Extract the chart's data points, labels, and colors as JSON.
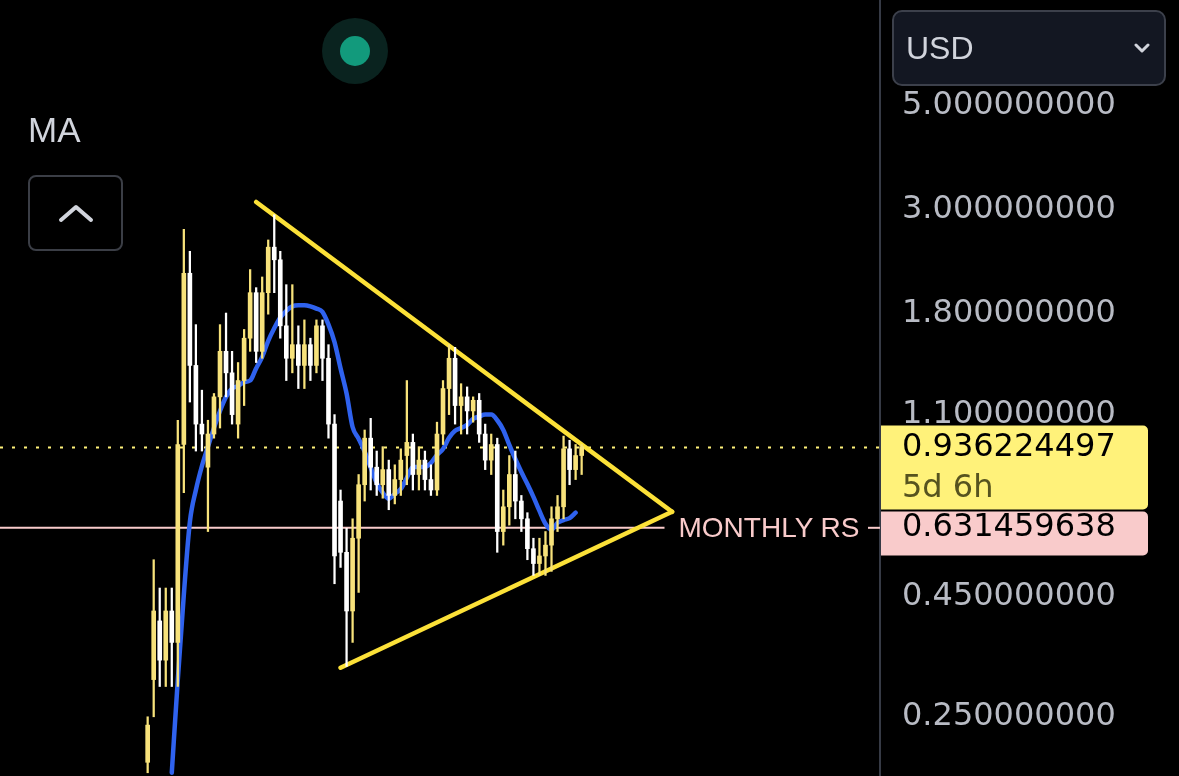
{
  "chart_data": {
    "type": "candlestick",
    "categories": [
      null,
      null,
      null,
      null,
      null,
      null,
      null,
      null,
      null,
      null,
      null,
      null,
      null,
      null,
      null,
      null,
      null,
      null,
      null,
      null,
      null,
      null,
      null,
      null,
      null,
      null,
      null,
      null,
      null,
      null,
      null,
      null,
      null,
      null,
      null,
      null,
      null,
      null,
      null,
      null,
      null,
      null,
      null,
      null,
      null,
      null,
      null,
      null,
      null,
      null,
      null,
      null,
      null,
      null,
      null,
      null,
      null,
      null,
      null,
      null,
      null,
      null,
      null,
      null,
      null,
      null,
      null,
      null,
      null,
      null,
      null,
      null,
      null,
      null,
      null,
      null,
      null,
      null,
      null,
      null,
      null,
      null,
      null,
      null,
      null,
      null,
      null,
      null,
      null,
      null,
      null,
      null,
      null,
      null,
      null,
      null,
      null,
      null,
      null,
      null,
      null,
      null,
      null,
      null,
      null,
      null,
      null,
      null,
      null,
      null,
      null,
      null,
      null,
      null,
      null,
      null,
      null,
      null,
      null,
      null,
      null,
      null,
      null,
      null,
      null,
      null,
      null,
      null,
      null,
      null,
      null,
      null,
      null,
      null,
      null,
      null,
      null,
      null,
      null,
      null,
      null,
      null,
      null,
      null,
      null,
      null
    ],
    "ohlc": [
      null,
      null,
      null,
      null,
      null,
      null,
      null,
      null,
      null,
      null,
      null,
      null,
      null,
      null,
      null,
      null,
      null,
      null,
      null,
      null,
      null,
      null,
      null,
      null,
      [
        0.2,
        0.25,
        0.19,
        0.24
      ],
      [
        0.3,
        0.54,
        0.25,
        0.42
      ],
      [
        0.4,
        0.47,
        0.29,
        0.33
      ],
      [
        0.33,
        0.47,
        0.29,
        0.42
      ],
      [
        0.42,
        0.47,
        0.29,
        0.36
      ],
      [
        0.36,
        1.07,
        0.29,
        0.95
      ],
      [
        0.95,
        2.73,
        0.75,
        2.2
      ],
      [
        2.2,
        2.45,
        1.17,
        1.4
      ],
      [
        1.4,
        1.71,
        0.92,
        1.05
      ],
      [
        1.05,
        1.24,
        0.92,
        1
      ],
      [
        0.85,
        1.07,
        0.62,
        1
      ],
      [
        1,
        1.22,
        0.98,
        1.2
      ],
      [
        1.2,
        1.71,
        1.03,
        1.5
      ],
      [
        1.5,
        1.81,
        1.2,
        1.35
      ],
      [
        1.35,
        1.5,
        1.05,
        1.1
      ],
      [
        1.05,
        1.42,
        0.98,
        1.3
      ],
      [
        1.3,
        1.67,
        1.15,
        1.6
      ],
      [
        1.6,
        2.24,
        1.5,
        2
      ],
      [
        2,
        2.05,
        1.42,
        1.5
      ],
      [
        1.5,
        2.16,
        1.45,
        2
      ],
      [
        2,
        2.59,
        1.8,
        2.5
      ],
      [
        2.5,
        2.93,
        2,
        2.35
      ],
      [
        2.35,
        2.45,
        1.6,
        1.7
      ],
      [
        1.7,
        2.08,
        1.3,
        1.45
      ],
      [
        1.45,
        2.08,
        1.35,
        1.55
      ],
      [
        1.55,
        1.7,
        1.25,
        1.4
      ],
      [
        1.4,
        1.75,
        1.25,
        1.55
      ],
      [
        1.55,
        1.6,
        1.3,
        1.4
      ],
      [
        1.4,
        1.75,
        1.35,
        1.7
      ],
      [
        1.7,
        1.75,
        1.3,
        1.45
      ],
      [
        1.45,
        1.55,
        0.98,
        1.05
      ],
      [
        1.05,
        1.1,
        0.48,
        0.55
      ],
      [
        0.72,
        0.76,
        0.52,
        0.56
      ],
      [
        0.56,
        0.63,
        0.32,
        0.42
      ],
      [
        0.42,
        0.66,
        0.36,
        0.6
      ],
      [
        0.6,
        0.82,
        0.46,
        0.78
      ],
      [
        0.78,
        1.02,
        0.72,
        0.98
      ],
      [
        0.98,
        1.08,
        0.76,
        0.85
      ],
      [
        0.85,
        0.92,
        0.74,
        0.78
      ],
      [
        0.78,
        0.94,
        0.73,
        0.84
      ],
      [
        0.84,
        0.88,
        0.69,
        0.74
      ],
      [
        0.74,
        0.86,
        0.71,
        0.8
      ],
      [
        0.8,
        0.93,
        0.74,
        0.88
      ],
      [
        0.9,
        1.3,
        0.78,
        0.96
      ],
      [
        0.96,
        1,
        0.76,
        0.82
      ],
      [
        0.82,
        0.94,
        0.76,
        0.88
      ],
      [
        0.88,
        0.92,
        0.76,
        0.8
      ],
      [
        0.8,
        0.86,
        0.74,
        0.76
      ],
      [
        0.76,
        1.06,
        0.74,
        1
      ],
      [
        1,
        1.3,
        0.95,
        1.25
      ],
      [
        1.25,
        1.55,
        1.1,
        1.45
      ],
      [
        1.45,
        1.53,
        1.05,
        1.15
      ],
      [
        1.15,
        1.28,
        1,
        1.2
      ],
      [
        1.2,
        1.26,
        1,
        1.12
      ],
      [
        1.12,
        1.2,
        1.06,
        1.18
      ],
      [
        1.18,
        1.22,
        0.96,
        1
      ],
      [
        1,
        1.05,
        0.84,
        0.88
      ],
      [
        0.88,
        1,
        0.82,
        0.95
      ],
      [
        0.95,
        0.98,
        0.56,
        0.62
      ],
      [
        0.62,
        0.76,
        0.58,
        0.7
      ],
      [
        0.7,
        0.9,
        0.64,
        0.82
      ],
      [
        0.82,
        0.92,
        0.66,
        0.72
      ],
      [
        0.72,
        0.74,
        0.62,
        0.66
      ],
      [
        0.66,
        0.68,
        0.54,
        0.57
      ],
      [
        0.57,
        0.6,
        0.5,
        0.53
      ],
      [
        0.53,
        0.6,
        0.5,
        0.55
      ],
      [
        0.55,
        0.62,
        0.5,
        0.58
      ],
      [
        0.58,
        0.7,
        0.51,
        0.66
      ],
      [
        0.66,
        0.74,
        0.62,
        0.7
      ],
      [
        0.7,
        0.99,
        0.66,
        0.93
      ],
      [
        0.93,
        0.97,
        0.78,
        0.84
      ],
      [
        0.84,
        0.95,
        0.8,
        0.9
      ],
      [
        0.9,
        0.95,
        0.82,
        0.94
      ],
      null,
      null,
      null,
      null,
      null,
      null,
      null,
      null,
      null,
      null,
      null,
      null,
      null,
      null,
      null,
      null,
      null,
      null,
      null,
      null,
      null,
      null,
      null,
      null,
      null,
      null,
      null,
      null,
      null,
      null,
      null,
      null,
      null,
      null,
      null,
      null,
      null,
      null,
      null,
      null,
      null,
      null,
      null,
      null,
      null,
      null,
      null,
      null,
      null
    ],
    "colors": [
      null,
      null,
      null,
      null,
      null,
      null,
      null,
      null,
      null,
      null,
      null,
      null,
      null,
      null,
      null,
      null,
      null,
      null,
      null,
      null,
      null,
      null,
      null,
      null,
      "#f7e27b",
      "#f7e27b",
      "#ffffff",
      "#f7e27b",
      "#ffffff",
      "#f7e27b",
      "#f7e27b",
      "#ffffff",
      "#ffffff",
      "#ffffff",
      "#f7e27b",
      "#f7e27b",
      "#f7e27b",
      "#ffffff",
      "#ffffff",
      "#f7e27b",
      "#f7e27b",
      "#f7e27b",
      "#ffffff",
      "#f7e27b",
      "#f7e27b",
      "#ffffff",
      "#ffffff",
      "#ffffff",
      "#f7e27b",
      "#ffffff",
      "#f7e27b",
      "#ffffff",
      "#f7e27b",
      "#ffffff",
      "#ffffff",
      "#ffffff",
      "#ffffff",
      "#ffffff",
      "#f7e27b",
      "#f7e27b",
      "#f7e27b",
      "#ffffff",
      "#ffffff",
      "#f7e27b",
      "#ffffff",
      "#f7e27b",
      "#f7e27b",
      "#f7e27b",
      "#ffffff",
      "#f7e27b",
      "#ffffff",
      "#ffffff",
      "#f7e27b",
      "#f7e27b",
      "#f7e27b",
      "#ffffff",
      "#f7e27b",
      "#ffffff",
      "#f7e27b",
      "#ffffff",
      "#ffffff",
      "#f7e27b",
      "#ffffff",
      "#f7e27b",
      "#f7e27b",
      "#ffffff",
      "#ffffff",
      "#ffffff",
      "#ffffff",
      "#f7e27b",
      "#f7e27b",
      "#f7e27b",
      "#f7e27b",
      "#f7e27b",
      "#ffffff",
      "#f7e27b",
      "#f7e27b",
      null,
      null,
      null,
      null,
      null,
      null,
      null,
      null,
      null,
      null,
      null,
      null,
      null,
      null,
      null,
      null,
      null,
      null,
      null,
      null,
      null,
      null,
      null,
      null,
      null,
      null,
      null,
      null,
      null,
      null,
      null,
      null,
      null,
      null,
      null,
      null,
      null,
      null,
      null,
      null,
      null,
      null,
      null,
      null,
      null,
      null,
      null,
      null,
      null
    ],
    "series": [
      {
        "type": "line",
        "color": "#2f62ee",
        "values": [
          null,
          null,
          null,
          null,
          null,
          null,
          null,
          null,
          null,
          null,
          null,
          null,
          null,
          null,
          null,
          null,
          null,
          null,
          null,
          null,
          null,
          null,
          null,
          null,
          null,
          null,
          null,
          null,
          0.19,
          0.3,
          0.455,
          0.65,
          0.76,
          0.855,
          0.94,
          1.03,
          1.12,
          1.2,
          1.25,
          1.265,
          1.29,
          1.3,
          1.38,
          1.46,
          1.58,
          1.68,
          1.77,
          1.83,
          1.87,
          1.88,
          1.88,
          1.87,
          1.85,
          1.82,
          1.71,
          1.57,
          1.38,
          1.22,
          1.035,
          0.977,
          0.917,
          0.848,
          0.787,
          0.75,
          0.728,
          0.746,
          0.764,
          0.807,
          0.851,
          0.851,
          0.851,
          0.868,
          0.903,
          0.929,
          0.982,
          1.016,
          1.03,
          1.046,
          1.077,
          1.09,
          1.1,
          1.1,
          1.07,
          1.02,
          0.948,
          0.885,
          0.83,
          0.783,
          0.735,
          0.686,
          0.644,
          0.625,
          0.647,
          0.656,
          0.662,
          0.68,
          null,
          null,
          null,
          null,
          null,
          null,
          null,
          null,
          null,
          null,
          null,
          null,
          null,
          null,
          null,
          null,
          null,
          null,
          null,
          null,
          null,
          null,
          null,
          null,
          null,
          null,
          null,
          null,
          null,
          null,
          null,
          null,
          null,
          null,
          null,
          null,
          null,
          null,
          null,
          null,
          null,
          null,
          null,
          null,
          null,
          null,
          null,
          null,
          null,
          null
        ]
      },
      {
        "type": "line",
        "color": "#fce138",
        "values": [
          null,
          null,
          null,
          null,
          null,
          null,
          null,
          null,
          null,
          null,
          null,
          null,
          null,
          null,
          null,
          null,
          null,
          null,
          null,
          null,
          null,
          null,
          null,
          null,
          null,
          null,
          null,
          null,
          null,
          null,
          null,
          null,
          null,
          null,
          null,
          null,
          null,
          null,
          null,
          null,
          null,
          null,
          3.12,
          null,
          null,
          null,
          null,
          null,
          null,
          null,
          null,
          null,
          null,
          null,
          null,
          null,
          null,
          null,
          null,
          null,
          null,
          null,
          null,
          null,
          null,
          null,
          null,
          null,
          null,
          null,
          null,
          null,
          null,
          null,
          null,
          null,
          null,
          null,
          null,
          null,
          null,
          null,
          null,
          null,
          null,
          null,
          null,
          null,
          null,
          null,
          null,
          null,
          null,
          null,
          null,
          null,
          null,
          null,
          null,
          null,
          null,
          null,
          null,
          null,
          null,
          null,
          null,
          null,
          null,
          null,
          null,
          0.683,
          null,
          null,
          null,
          null,
          null,
          null,
          null,
          null,
          null,
          null,
          null,
          null,
          null,
          null,
          null,
          null,
          null,
          null,
          null,
          null,
          null,
          null,
          null,
          null,
          null,
          null,
          null,
          null,
          null,
          null,
          null,
          null,
          null,
          null
        ]
      },
      {
        "type": "line",
        "color": "#fce138",
        "values": [
          null,
          null,
          null,
          null,
          null,
          null,
          null,
          null,
          null,
          null,
          null,
          null,
          null,
          null,
          null,
          null,
          null,
          null,
          null,
          null,
          null,
          null,
          null,
          null,
          null,
          null,
          null,
          null,
          null,
          null,
          null,
          null,
          null,
          null,
          null,
          null,
          null,
          null,
          null,
          null,
          null,
          null,
          null,
          null,
          null,
          null,
          null,
          null,
          null,
          null,
          null,
          null,
          null,
          null,
          null,
          null,
          0.318,
          null,
          null,
          null,
          null,
          null,
          null,
          null,
          null,
          null,
          null,
          null,
          null,
          null,
          null,
          null,
          null,
          null,
          null,
          null,
          null,
          null,
          null,
          null,
          null,
          null,
          null,
          null,
          null,
          null,
          null,
          null,
          null,
          null,
          null,
          null,
          null,
          null,
          null,
          null,
          null,
          null,
          null,
          null,
          null,
          null,
          null,
          null,
          null,
          null,
          null,
          null,
          null,
          null,
          null,
          0.683,
          null,
          null,
          null,
          null,
          null,
          null,
          null,
          null,
          null,
          null,
          null,
          null,
          null,
          null,
          null,
          null,
          null,
          null,
          null,
          null,
          null,
          null,
          null,
          null,
          null,
          null,
          null,
          null,
          null,
          null,
          null,
          null,
          null,
          null
        ]
      }
    ],
    "ylim": [
      0.187,
      8.4
    ],
    "yticks": [
      {
        "value": 0.25,
        "label": "0.250000000"
      },
      {
        "value": 0.45,
        "label": "0.450000000"
      },
      {
        "value": 0.631459638,
        "label": "0.631459638"
      },
      {
        "value": 0.936224497,
        "label": "0.936224497"
      },
      {
        "value": 1.1,
        "label": "1.100000000"
      },
      {
        "value": 1.8,
        "label": "1.800000000"
      },
      {
        "value": 3,
        "label": "3.000000000"
      },
      {
        "value": 5,
        "label": "5.000000000"
      }
    ],
    "log": true,
    "ylabel": "USD",
    "tick_labels": "y",
    "ref_lines": [
      {
        "axis": "y",
        "value": 0.936224497,
        "label": "5d 6h",
        "color": "#fff27a",
        "line_style": "dotted"
      },
      {
        "axis": "y",
        "value": 0.631459638,
        "label": "MONTHLY RS",
        "color": "#f9cbcb",
        "line_style": "solid"
      }
    ],
    "annotations": [
      "MA"
    ]
  }
}
